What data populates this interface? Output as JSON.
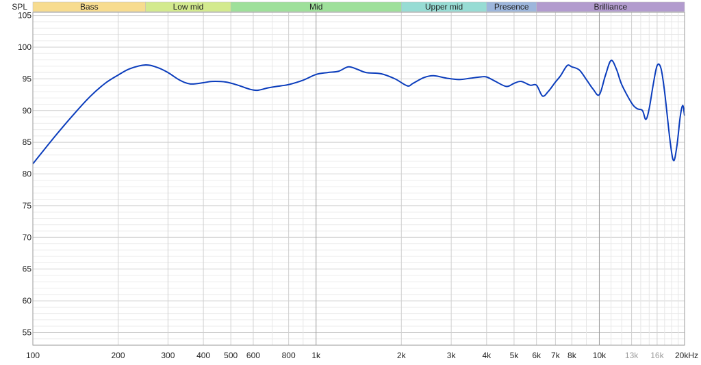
{
  "chart_data": {
    "type": "line",
    "title": "",
    "xlabel": "",
    "ylabel": "SPL",
    "x_scale": "log",
    "xlim": [
      100,
      20000
    ],
    "ylim": [
      53,
      105.5
    ],
    "x_unit": "kHz",
    "grid": true,
    "y_ticks": [
      55,
      60,
      65,
      70,
      75,
      80,
      85,
      90,
      95,
      100,
      105
    ],
    "y_tick_labels": [
      "55",
      "60",
      "65",
      "70",
      "75",
      "80",
      "85",
      "90",
      "95",
      "100",
      "105"
    ],
    "x_ticks": [
      {
        "value": 100,
        "label": "100",
        "muted": false
      },
      {
        "value": 200,
        "label": "200",
        "muted": false
      },
      {
        "value": 300,
        "label": "300",
        "muted": false
      },
      {
        "value": 400,
        "label": "400",
        "muted": false
      },
      {
        "value": 500,
        "label": "500",
        "muted": false
      },
      {
        "value": 600,
        "label": "600",
        "muted": false
      },
      {
        "value": 800,
        "label": "800",
        "muted": false
      },
      {
        "value": 1000,
        "label": "1k",
        "muted": false
      },
      {
        "value": 2000,
        "label": "2k",
        "muted": false
      },
      {
        "value": 3000,
        "label": "3k",
        "muted": false
      },
      {
        "value": 4000,
        "label": "4k",
        "muted": false
      },
      {
        "value": 5000,
        "label": "5k",
        "muted": false
      },
      {
        "value": 6000,
        "label": "6k",
        "muted": false
      },
      {
        "value": 7000,
        "label": "7k",
        "muted": false
      },
      {
        "value": 8000,
        "label": "8k",
        "muted": false
      },
      {
        "value": 10000,
        "label": "10k",
        "muted": false
      },
      {
        "value": 13000,
        "label": "13k",
        "muted": true
      },
      {
        "value": 16000,
        "label": "16k",
        "muted": true
      },
      {
        "value": 20000,
        "label": "20kHz",
        "muted": false
      }
    ],
    "bands": [
      {
        "name": "Bass",
        "from": 100,
        "to": 250,
        "color": "#f7dc8f"
      },
      {
        "name": "Low mid",
        "from": 250,
        "to": 500,
        "color": "#d3ea8e"
      },
      {
        "name": "Mid",
        "from": 500,
        "to": 2000,
        "color": "#9ee09a"
      },
      {
        "name": "Upper mid",
        "from": 2000,
        "to": 4000,
        "color": "#97dcd4"
      },
      {
        "name": "Presence",
        "from": 4000,
        "to": 6000,
        "color": "#9db6dc"
      },
      {
        "name": "Brilliance",
        "from": 6000,
        "to": 20000,
        "color": "#b29bce"
      }
    ],
    "series": [
      {
        "color": "#0a3cbc",
        "points": [
          [
            100,
            81.6
          ],
          [
            120,
            86.0
          ],
          [
            140,
            89.5
          ],
          [
            160,
            92.3
          ],
          [
            180,
            94.3
          ],
          [
            200,
            95.6
          ],
          [
            220,
            96.6
          ],
          [
            250,
            97.2
          ],
          [
            275,
            96.8
          ],
          [
            300,
            96.0
          ],
          [
            330,
            94.8
          ],
          [
            360,
            94.2
          ],
          [
            400,
            94.4
          ],
          [
            430,
            94.6
          ],
          [
            480,
            94.5
          ],
          [
            530,
            94.0
          ],
          [
            580,
            93.4
          ],
          [
            620,
            93.2
          ],
          [
            680,
            93.6
          ],
          [
            750,
            93.9
          ],
          [
            800,
            94.1
          ],
          [
            900,
            94.8
          ],
          [
            1000,
            95.7
          ],
          [
            1100,
            96.0
          ],
          [
            1200,
            96.2
          ],
          [
            1300,
            96.9
          ],
          [
            1400,
            96.5
          ],
          [
            1500,
            96.0
          ],
          [
            1700,
            95.8
          ],
          [
            1900,
            95.0
          ],
          [
            2100,
            93.9
          ],
          [
            2200,
            94.3
          ],
          [
            2400,
            95.2
          ],
          [
            2600,
            95.5
          ],
          [
            2900,
            95.1
          ],
          [
            3200,
            94.9
          ],
          [
            3500,
            95.1
          ],
          [
            3800,
            95.3
          ],
          [
            4000,
            95.3
          ],
          [
            4300,
            94.6
          ],
          [
            4700,
            93.8
          ],
          [
            5000,
            94.3
          ],
          [
            5300,
            94.6
          ],
          [
            5700,
            94.0
          ],
          [
            6000,
            94.0
          ],
          [
            6300,
            92.3
          ],
          [
            6600,
            93.0
          ],
          [
            7000,
            94.5
          ],
          [
            7300,
            95.5
          ],
          [
            7700,
            97.1
          ],
          [
            8000,
            96.9
          ],
          [
            8500,
            96.4
          ],
          [
            9000,
            94.9
          ],
          [
            9500,
            93.4
          ],
          [
            10000,
            92.5
          ],
          [
            10500,
            95.5
          ],
          [
            11000,
            97.9
          ],
          [
            11500,
            96.5
          ],
          [
            12000,
            94.1
          ],
          [
            13000,
            91.2
          ],
          [
            13600,
            90.3
          ],
          [
            14200,
            90.0
          ],
          [
            14600,
            88.6
          ],
          [
            15000,
            90.3
          ],
          [
            15500,
            94.1
          ],
          [
            16000,
            97.1
          ],
          [
            16500,
            96.7
          ],
          [
            17000,
            93.0
          ],
          [
            17800,
            85.0
          ],
          [
            18300,
            82.1
          ],
          [
            18800,
            84.5
          ],
          [
            19300,
            89.0
          ],
          [
            19700,
            90.8
          ],
          [
            20000,
            89.2
          ]
        ]
      }
    ]
  }
}
